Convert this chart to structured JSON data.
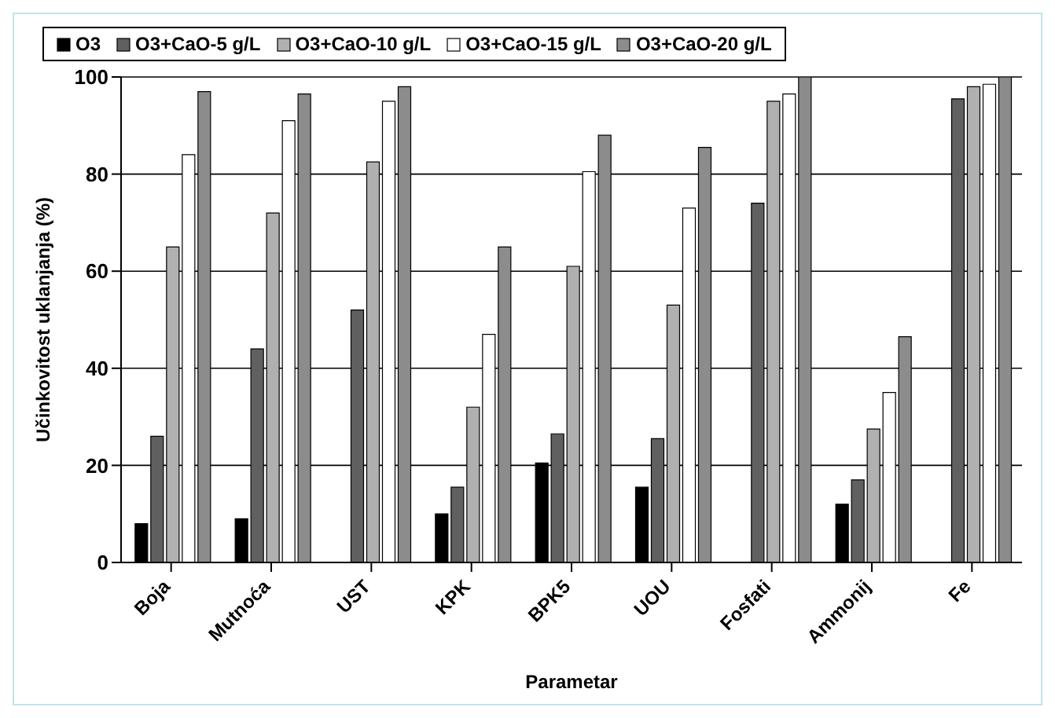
{
  "chart_data": {
    "type": "bar",
    "xlabel": "Parametar",
    "ylabel": "Učinkovitost uklanjanja (%)",
    "categories": [
      "Boja",
      "Mutnoća",
      "UST",
      "KPK",
      "BPK5",
      "UOU",
      "Fosfati",
      "Ammonij",
      "Fe"
    ],
    "series": [
      {
        "name": "O3",
        "color": "#000000",
        "values": [
          8,
          9,
          null,
          10,
          20.5,
          15.5,
          null,
          12,
          null
        ]
      },
      {
        "name": "O3+CaO-5 g/L",
        "color": "#606060",
        "values": [
          26,
          44,
          52,
          15.5,
          26.5,
          25.5,
          74,
          17,
          95.5
        ]
      },
      {
        "name": "O3+CaO-10 g/L",
        "color": "#b0b0b0",
        "values": [
          65,
          72,
          82.5,
          32,
          61,
          53,
          95,
          27.5,
          98
        ]
      },
      {
        "name": "O3+CaO-15 g/L",
        "color": "#ffffff",
        "values": [
          84,
          91,
          95,
          47,
          80.5,
          73,
          96.5,
          35,
          98.5
        ]
      },
      {
        "name": "O3+CaO-20 g/L",
        "color": "#8c8c8c",
        "values": [
          97,
          96.5,
          98,
          65,
          88,
          85.5,
          100,
          46.5,
          100
        ]
      }
    ],
    "ylim": [
      0,
      100
    ],
    "yticks": [
      0,
      20,
      40,
      60,
      80,
      100
    ],
    "grid": "y",
    "legend": "top"
  }
}
